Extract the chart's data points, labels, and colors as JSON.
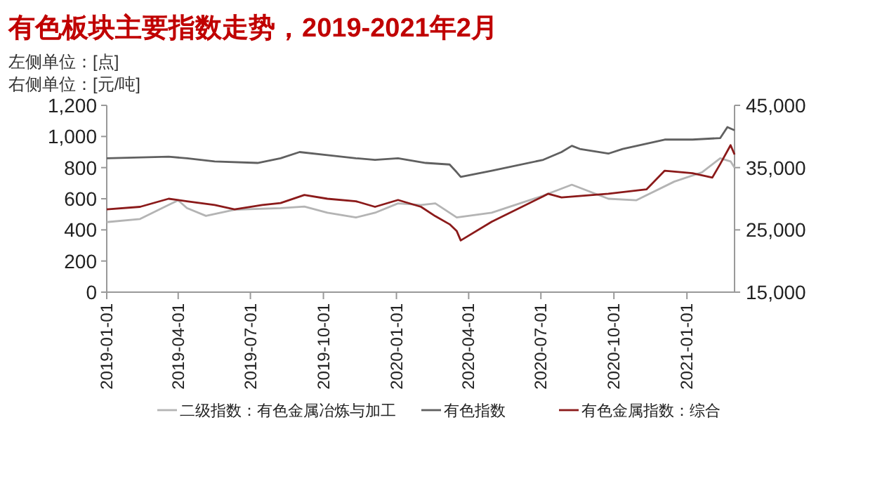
{
  "chart_data": {
    "type": "line",
    "title": "有色板块主要指数走势，2019-2021年2月",
    "annotations": [
      "左侧单位：[点]",
      "右侧单位：[元/吨]"
    ],
    "xlim": [
      "2019-01-01",
      "2021-03-02"
    ],
    "xticks": [
      "2019-01-01",
      "2019-04-01",
      "2019-07-01",
      "2019-10-01",
      "2020-01-01",
      "2020-04-01",
      "2020-07-01",
      "2020-10-01",
      "2021-01-01"
    ],
    "ylim": [
      0,
      1200
    ],
    "yticks": [
      {
        "value": 0,
        "label": "0"
      },
      {
        "value": 200,
        "label": "200"
      },
      {
        "value": 400,
        "label": "400"
      },
      {
        "value": 600,
        "label": "600"
      },
      {
        "value": 800,
        "label": "800"
      },
      {
        "value": 1000,
        "label": "1,000"
      },
      {
        "value": 1200,
        "label": "1,200"
      }
    ],
    "y2lim": [
      15000,
      45000
    ],
    "y2ticks": [
      {
        "value": 15000,
        "label": "15,000"
      },
      {
        "value": 25000,
        "label": "25,000"
      },
      {
        "value": 35000,
        "label": "35,000"
      },
      {
        "value": 45000,
        "label": "45,000"
      }
    ],
    "grid": false,
    "legend": "bottom",
    "marker": "none",
    "line_style": "solid",
    "series": [
      {
        "name": "二级指数：有色金属冶炼与加工",
        "color": "#b4b4b4",
        "x": [
          "2019-01-01",
          "2019-02-12",
          "2019-03-20",
          "2019-04-01",
          "2019-04-12",
          "2019-05-06",
          "2019-06-11",
          "2019-08-08",
          "2019-09-07",
          "2019-10-06",
          "2019-11-11",
          "2019-12-05",
          "2020-01-03",
          "2020-02-01",
          "2020-02-19",
          "2020-03-17",
          "2020-04-30",
          "2020-07-04",
          "2020-08-09",
          "2020-09-24",
          "2020-10-29",
          "2020-12-16",
          "2021-01-20",
          "2021-02-12",
          "2021-02-25",
          "2021-03-02"
        ],
        "values": [
          450,
          470,
          560,
          590,
          540,
          490,
          530,
          540,
          550,
          510,
          480,
          510,
          570,
          560,
          570,
          480,
          510,
          620,
          690,
          600,
          590,
          710,
          770,
          860,
          840,
          800
        ]
      },
      {
        "name": "有色指数",
        "color": "#606060",
        "x": [
          "2019-01-01",
          "2019-03-20",
          "2019-04-12",
          "2019-05-17",
          "2019-07-10",
          "2019-08-08",
          "2019-09-01",
          "2019-10-06",
          "2019-11-11",
          "2019-12-05",
          "2020-01-03",
          "2020-02-07",
          "2020-03-08",
          "2020-03-17",
          "2020-03-22",
          "2020-04-30",
          "2020-07-04",
          "2020-07-27",
          "2020-08-09",
          "2020-08-19",
          "2020-09-24",
          "2020-10-12",
          "2020-12-04",
          "2021-01-08",
          "2021-02-12",
          "2021-02-21",
          "2021-03-02"
        ],
        "values": [
          860,
          870,
          860,
          840,
          830,
          860,
          900,
          880,
          860,
          850,
          860,
          830,
          820,
          770,
          740,
          780,
          850,
          900,
          940,
          920,
          890,
          920,
          980,
          980,
          990,
          1060,
          1040
        ]
      },
      {
        "name": "有色金属指数：综合",
        "color": "#8b1a1a",
        "axis": "y2",
        "x": [
          "2019-01-01",
          "2019-02-12",
          "2019-03-20",
          "2019-04-12",
          "2019-05-17",
          "2019-06-11",
          "2019-07-16",
          "2019-08-08",
          "2019-09-07",
          "2019-10-06",
          "2019-11-11",
          "2019-12-05",
          "2020-01-03",
          "2020-02-01",
          "2020-02-19",
          "2020-03-08",
          "2020-03-17",
          "2020-03-22",
          "2020-04-30",
          "2020-07-04",
          "2020-07-10",
          "2020-07-27",
          "2020-09-24",
          "2020-11-11",
          "2020-12-04",
          "2021-01-08",
          "2021-02-02",
          "2021-02-12",
          "2021-02-25",
          "2021-03-02"
        ],
        "values": [
          28300,
          28700,
          30000,
          29600,
          29000,
          28300,
          29000,
          29300,
          30600,
          30000,
          29600,
          28700,
          29800,
          28700,
          27200,
          25900,
          24800,
          23300,
          26300,
          30400,
          30800,
          30200,
          30800,
          31500,
          34500,
          34100,
          33400,
          35600,
          38600,
          37100
        ]
      }
    ]
  }
}
